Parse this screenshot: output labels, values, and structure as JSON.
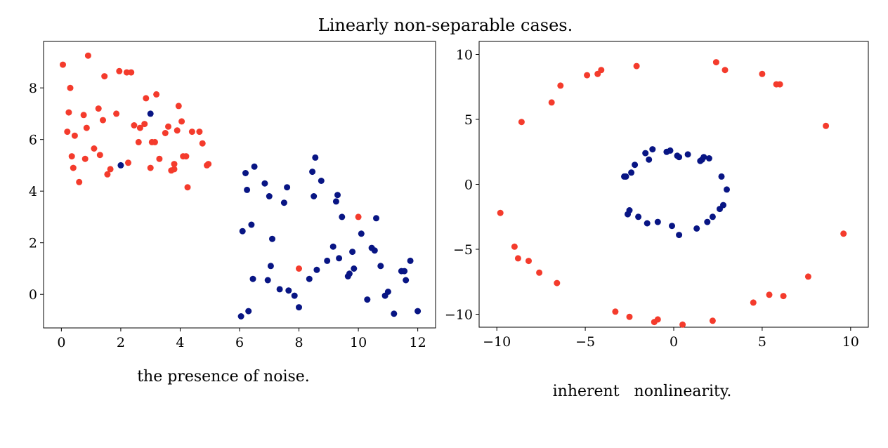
{
  "title": "Linearly non-separable cases.",
  "colors": {
    "class_a": "#f43b2c",
    "class_b": "#081584"
  },
  "chart_data": [
    {
      "type": "scatter",
      "caption": "the presence of noise.",
      "xlim": [
        -0.6,
        12.6
      ],
      "ylim": [
        -1.3,
        9.8
      ],
      "xticks": [
        0,
        2,
        4,
        6,
        8,
        10,
        12
      ],
      "yticks": [
        0,
        2,
        4,
        6,
        8
      ],
      "grid": false,
      "series": [
        {
          "color": "#f43b2c",
          "points": [
            [
              0.05,
              8.9
            ],
            [
              0.2,
              6.3
            ],
            [
              0.25,
              7.05
            ],
            [
              0.3,
              8.0
            ],
            [
              0.35,
              5.35
            ],
            [
              0.4,
              4.9
            ],
            [
              0.45,
              6.15
            ],
            [
              0.6,
              4.35
            ],
            [
              0.75,
              6.95
            ],
            [
              0.8,
              5.25
            ],
            [
              0.85,
              6.45
            ],
            [
              0.9,
              9.25
            ],
            [
              1.1,
              5.65
            ],
            [
              1.25,
              7.2
            ],
            [
              1.3,
              5.4
            ],
            [
              1.4,
              6.75
            ],
            [
              1.45,
              8.45
            ],
            [
              1.55,
              4.65
            ],
            [
              1.65,
              4.85
            ],
            [
              1.85,
              7.0
            ],
            [
              1.95,
              8.65
            ],
            [
              2.2,
              8.6
            ],
            [
              2.25,
              5.1
            ],
            [
              2.35,
              8.6
            ],
            [
              2.45,
              6.55
            ],
            [
              2.6,
              5.9
            ],
            [
              2.65,
              6.45
            ],
            [
              2.8,
              6.6
            ],
            [
              2.85,
              7.6
            ],
            [
              3.0,
              4.9
            ],
            [
              3.05,
              5.9
            ],
            [
              3.15,
              5.9
            ],
            [
              3.2,
              7.75
            ],
            [
              3.3,
              5.25
            ],
            [
              3.5,
              6.25
            ],
            [
              3.6,
              6.5
            ],
            [
              3.7,
              4.8
            ],
            [
              3.8,
              5.05
            ],
            [
              3.8,
              4.85
            ],
            [
              3.9,
              6.35
            ],
            [
              3.95,
              7.3
            ],
            [
              4.05,
              6.7
            ],
            [
              4.1,
              5.35
            ],
            [
              4.2,
              5.35
            ],
            [
              4.25,
              4.15
            ],
            [
              4.4,
              6.3
            ],
            [
              4.65,
              6.3
            ],
            [
              4.75,
              5.85
            ],
            [
              4.9,
              5.0
            ],
            [
              4.95,
              5.05
            ],
            [
              8.0,
              1.0
            ],
            [
              10.0,
              3.0
            ]
          ]
        },
        {
          "color": "#081584",
          "points": [
            [
              2.0,
              5.0
            ],
            [
              3.0,
              7.0
            ],
            [
              6.05,
              -0.85
            ],
            [
              6.1,
              2.45
            ],
            [
              6.2,
              4.7
            ],
            [
              6.25,
              4.05
            ],
            [
              6.3,
              -0.65
            ],
            [
              6.4,
              2.7
            ],
            [
              6.45,
              0.6
            ],
            [
              6.5,
              4.95
            ],
            [
              6.85,
              4.3
            ],
            [
              6.95,
              0.55
            ],
            [
              7.0,
              3.8
            ],
            [
              7.05,
              1.1
            ],
            [
              7.1,
              2.15
            ],
            [
              7.35,
              0.2
            ],
            [
              7.5,
              3.55
            ],
            [
              7.6,
              4.15
            ],
            [
              7.65,
              0.15
            ],
            [
              7.85,
              -0.05
            ],
            [
              8.0,
              -0.5
            ],
            [
              8.35,
              0.6
            ],
            [
              8.45,
              4.75
            ],
            [
              8.5,
              3.8
            ],
            [
              8.55,
              5.3
            ],
            [
              8.6,
              0.95
            ],
            [
              8.75,
              4.4
            ],
            [
              8.95,
              1.3
            ],
            [
              9.15,
              1.85
            ],
            [
              9.25,
              3.6
            ],
            [
              9.3,
              3.85
            ],
            [
              9.35,
              1.4
            ],
            [
              9.45,
              3.0
            ],
            [
              9.65,
              0.7
            ],
            [
              9.7,
              0.8
            ],
            [
              9.8,
              1.65
            ],
            [
              9.85,
              1.0
            ],
            [
              10.1,
              2.35
            ],
            [
              10.3,
              -0.2
            ],
            [
              10.45,
              1.8
            ],
            [
              10.55,
              1.7
            ],
            [
              10.6,
              2.95
            ],
            [
              10.75,
              1.1
            ],
            [
              10.9,
              -0.05
            ],
            [
              11.0,
              0.1
            ],
            [
              11.2,
              -0.75
            ],
            [
              11.45,
              0.9
            ],
            [
              11.55,
              0.9
            ],
            [
              11.6,
              0.55
            ],
            [
              11.75,
              1.3
            ],
            [
              12.0,
              -0.65
            ]
          ]
        }
      ]
    },
    {
      "type": "scatter",
      "caption": "inherent   nonlinearity.",
      "xlim": [
        -11,
        11
      ],
      "ylim": [
        -11,
        11
      ],
      "xticks": [
        -10,
        -5,
        0,
        5,
        10
      ],
      "yticks": [
        -10,
        -5,
        0,
        5,
        10
      ],
      "grid": false,
      "series": [
        {
          "color": "#f43b2c",
          "points": [
            [
              -9.8,
              -2.2
            ],
            [
              -9.0,
              -4.8
            ],
            [
              -8.8,
              -5.7
            ],
            [
              -8.6,
              4.8
            ],
            [
              -8.2,
              -5.9
            ],
            [
              -7.6,
              -6.8
            ],
            [
              -6.9,
              6.3
            ],
            [
              -6.6,
              -7.6
            ],
            [
              -6.4,
              7.6
            ],
            [
              -4.9,
              8.4
            ],
            [
              -4.3,
              8.5
            ],
            [
              -4.1,
              8.8
            ],
            [
              -3.3,
              -9.8
            ],
            [
              -2.5,
              -10.2
            ],
            [
              -2.1,
              9.1
            ],
            [
              -1.1,
              -10.6
            ],
            [
              -0.9,
              -10.4
            ],
            [
              0.5,
              -10.8
            ],
            [
              2.2,
              -10.5
            ],
            [
              2.4,
              9.4
            ],
            [
              2.9,
              8.8
            ],
            [
              4.5,
              -9.1
            ],
            [
              5.0,
              8.5
            ],
            [
              5.4,
              -8.5
            ],
            [
              5.8,
              7.7
            ],
            [
              6.0,
              7.7
            ],
            [
              6.2,
              -8.6
            ],
            [
              7.6,
              -7.1
            ],
            [
              8.6,
              4.5
            ],
            [
              9.6,
              -3.8
            ]
          ]
        },
        {
          "color": "#081584",
          "points": [
            [
              -2.8,
              0.6
            ],
            [
              -2.7,
              0.6
            ],
            [
              -2.6,
              -2.3
            ],
            [
              -2.5,
              -2.0
            ],
            [
              -2.4,
              0.9
            ],
            [
              -2.2,
              1.5
            ],
            [
              -2.0,
              -2.5
            ],
            [
              -1.6,
              2.4
            ],
            [
              -1.5,
              -3.0
            ],
            [
              -1.4,
              1.9
            ],
            [
              -1.2,
              2.7
            ],
            [
              -0.9,
              -2.9
            ],
            [
              -0.4,
              2.5
            ],
            [
              -0.2,
              2.6
            ],
            [
              -0.1,
              -3.2
            ],
            [
              0.2,
              2.2
            ],
            [
              0.3,
              2.1
            ],
            [
              0.3,
              -3.9
            ],
            [
              0.8,
              2.3
            ],
            [
              1.3,
              -3.4
            ],
            [
              1.5,
              1.8
            ],
            [
              1.6,
              1.9
            ],
            [
              1.7,
              2.1
            ],
            [
              1.9,
              -2.9
            ],
            [
              2.0,
              2.0
            ],
            [
              2.2,
              -2.5
            ],
            [
              2.6,
              -1.9
            ],
            [
              2.7,
              0.6
            ],
            [
              2.8,
              -1.6
            ],
            [
              3.0,
              -0.4
            ]
          ]
        }
      ]
    }
  ]
}
